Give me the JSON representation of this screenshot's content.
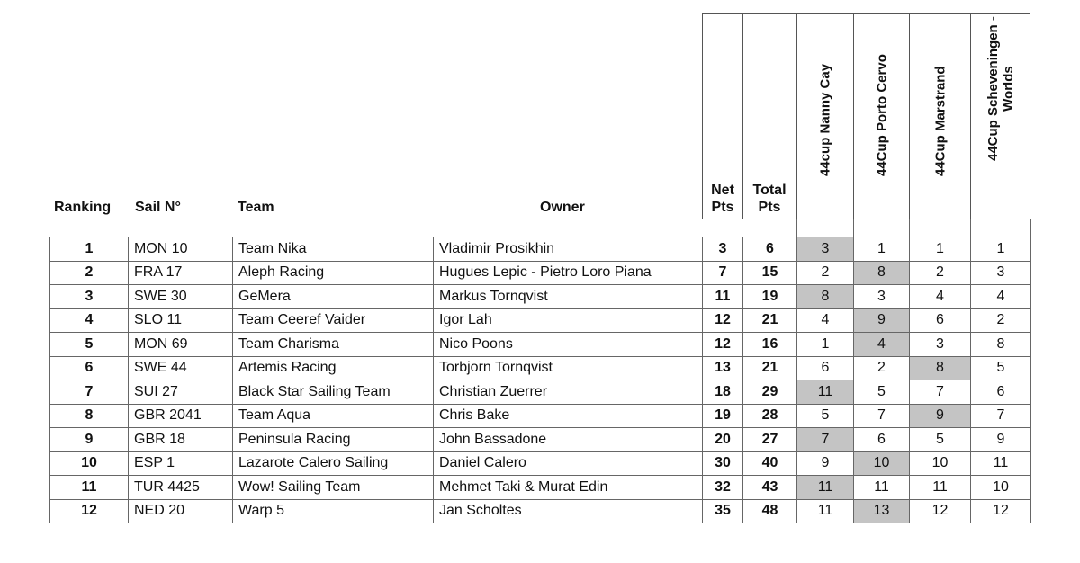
{
  "headers": {
    "ranking": "Ranking",
    "sail": "Sail N°",
    "team": "Team",
    "owner": "Owner",
    "net_line1": "Net",
    "net_line2": "Pts",
    "total_line1": "Total",
    "total_line2": "Pts",
    "races": [
      "44cup Nanny Cay",
      "44Cup Porto Cervo",
      "44Cup Marstrand",
      "44Cup Scheveningen -\nWorlds"
    ]
  },
  "drop_color": "#c4c4c4",
  "rows": [
    {
      "rank": "1",
      "sail": "MON 10",
      "team": "Team Nika",
      "owner": "Vladimir Prosikhin",
      "net": "3",
      "total": "6",
      "races": [
        "3",
        "1",
        "1",
        "1"
      ],
      "dropped": 0
    },
    {
      "rank": "2",
      "sail": "FRA 17",
      "team": "Aleph Racing",
      "owner": "Hugues Lepic - Pietro Loro Piana",
      "net": "7",
      "total": "15",
      "races": [
        "2",
        "8",
        "2",
        "3"
      ],
      "dropped": 1
    },
    {
      "rank": "3",
      "sail": "SWE 30",
      "team": "GeMera",
      "owner": "Markus Tornqvist",
      "net": "11",
      "total": "19",
      "races": [
        "8",
        "3",
        "4",
        "4"
      ],
      "dropped": 0
    },
    {
      "rank": "4",
      "sail": "SLO 11",
      "team": "Team Ceeref Vaider",
      "owner": "Igor Lah",
      "net": "12",
      "total": "21",
      "races": [
        "4",
        "9",
        "6",
        "2"
      ],
      "dropped": 1
    },
    {
      "rank": "5",
      "sail": "MON 69",
      "team": "Team Charisma",
      "owner": "Nico Poons",
      "net": "12",
      "total": "16",
      "races": [
        "1",
        "4",
        "3",
        "8"
      ],
      "dropped": 1
    },
    {
      "rank": "6",
      "sail": "SWE 44",
      "team": "Artemis Racing",
      "owner": "Torbjorn Tornqvist",
      "net": "13",
      "total": "21",
      "races": [
        "6",
        "2",
        "8",
        "5"
      ],
      "dropped": 2
    },
    {
      "rank": "7",
      "sail": "SUI 27",
      "team": "Black Star Sailing Team",
      "owner": "Christian Zuerrer",
      "net": "18",
      "total": "29",
      "races": [
        "11",
        "5",
        "7",
        "6"
      ],
      "dropped": 0
    },
    {
      "rank": "8",
      "sail": "GBR 2041",
      "team": "Team Aqua",
      "owner": "Chris Bake",
      "net": "19",
      "total": "28",
      "races": [
        "5",
        "7",
        "9",
        "7"
      ],
      "dropped": 2
    },
    {
      "rank": "9",
      "sail": "GBR 18",
      "team": "Peninsula Racing",
      "owner": "John Bassadone",
      "net": "20",
      "total": "27",
      "races": [
        "7",
        "6",
        "5",
        "9"
      ],
      "dropped": 0
    },
    {
      "rank": "10",
      "sail": "ESP 1",
      "team": "Lazarote Calero Sailing",
      "owner": "Daniel Calero",
      "net": "30",
      "total": "40",
      "races": [
        "9",
        "10",
        "10",
        "11"
      ],
      "dropped": 1
    },
    {
      "rank": "11",
      "sail": "TUR 4425",
      "team": "Wow! Sailing Team",
      "owner": "Mehmet Taki & Murat Edin",
      "net": "32",
      "total": "43",
      "races": [
        "11",
        "11",
        "11",
        "10"
      ],
      "dropped": 0
    },
    {
      "rank": "12",
      "sail": "NED 20",
      "team": "Warp 5",
      "owner": "Jan Scholtes",
      "net": "35",
      "total": "48",
      "races": [
        "11",
        "13",
        "12",
        "12"
      ],
      "dropped": 1
    }
  ]
}
